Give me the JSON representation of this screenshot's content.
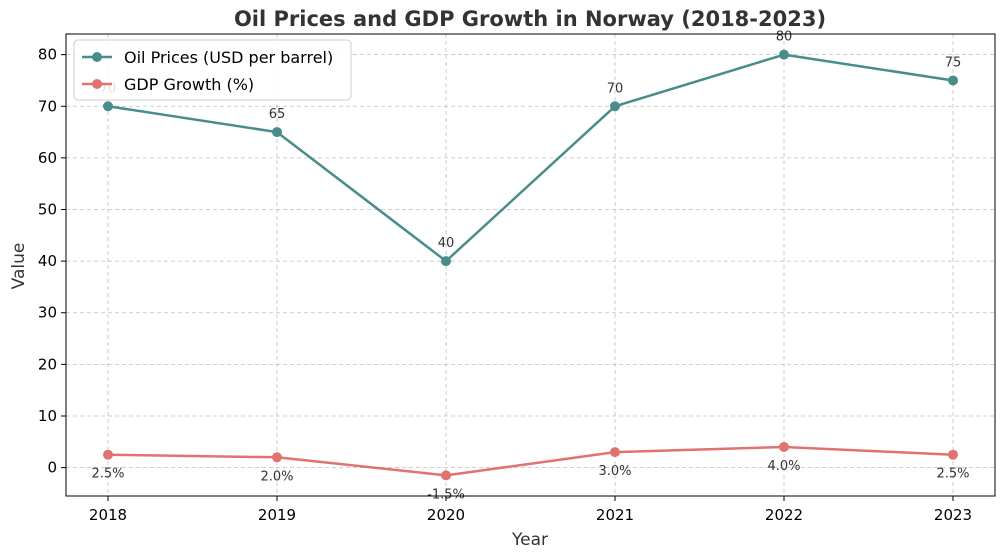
{
  "chart_data": {
    "type": "line",
    "title": "Oil Prices and GDP Growth in Norway (2018-2023)",
    "xlabel": "Year",
    "ylabel": "Value",
    "x": [
      "2018",
      "2019",
      "2020",
      "2021",
      "2022",
      "2023"
    ],
    "ylim": [
      -5.5,
      84
    ],
    "yticks": [
      0,
      10,
      20,
      30,
      40,
      50,
      60,
      70,
      80
    ],
    "grid": true,
    "legend_position": "top-left",
    "series": [
      {
        "name": "Oil Prices (USD per barrel)",
        "values": [
          70,
          65,
          40,
          70,
          80,
          75
        ],
        "labels": [
          "70",
          "65",
          "40",
          "70",
          "80",
          "75"
        ],
        "color": "#4a8c8a",
        "label_position": "above"
      },
      {
        "name": "GDP Growth (%)",
        "values": [
          2.5,
          2.0,
          -1.5,
          3.0,
          4.0,
          2.5
        ],
        "labels": [
          "2.5%",
          "2.0%",
          "-1.5%",
          "3.0%",
          "4.0%",
          "2.5%"
        ],
        "color": "#e07370",
        "label_position": "below"
      }
    ]
  }
}
